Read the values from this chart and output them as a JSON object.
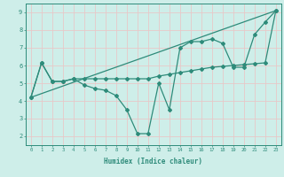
{
  "line1_x": [
    0,
    1,
    2,
    3,
    4,
    5,
    6,
    7,
    8,
    9,
    10,
    11,
    12,
    13,
    14,
    15,
    16,
    17,
    18,
    19,
    20,
    21,
    22,
    23
  ],
  "line1_y": [
    4.2,
    6.15,
    5.1,
    5.1,
    5.25,
    5.25,
    5.25,
    5.25,
    5.25,
    5.25,
    5.25,
    5.25,
    5.4,
    5.5,
    5.6,
    5.7,
    5.8,
    5.9,
    5.95,
    6.0,
    6.05,
    6.1,
    6.15,
    9.1
  ],
  "line2_x": [
    0,
    1,
    2,
    3,
    4,
    5,
    6,
    7,
    8,
    9,
    10,
    11,
    12,
    13,
    14,
    15,
    16,
    17,
    18,
    19,
    20,
    21,
    22,
    23
  ],
  "line2_y": [
    4.2,
    6.15,
    5.1,
    5.1,
    5.25,
    4.9,
    4.7,
    4.6,
    4.3,
    3.5,
    2.15,
    2.15,
    5.0,
    3.5,
    7.0,
    7.35,
    7.35,
    7.5,
    7.25,
    5.9,
    5.9,
    7.75,
    8.45,
    9.1
  ],
  "line3_x": [
    0,
    23
  ],
  "line3_y": [
    4.2,
    9.1
  ],
  "line_color": "#2e8b7a",
  "bg_color": "#ceeee9",
  "grid_color": "#e8c8c8",
  "xlabel": "Humidex (Indice chaleur)",
  "xlim": [
    -0.5,
    23.5
  ],
  "ylim": [
    1.5,
    9.5
  ],
  "yticks": [
    2,
    3,
    4,
    5,
    6,
    7,
    8,
    9
  ],
  "xticks": [
    0,
    1,
    2,
    3,
    4,
    5,
    6,
    7,
    8,
    9,
    10,
    11,
    12,
    13,
    14,
    15,
    16,
    17,
    18,
    19,
    20,
    21,
    22,
    23
  ]
}
